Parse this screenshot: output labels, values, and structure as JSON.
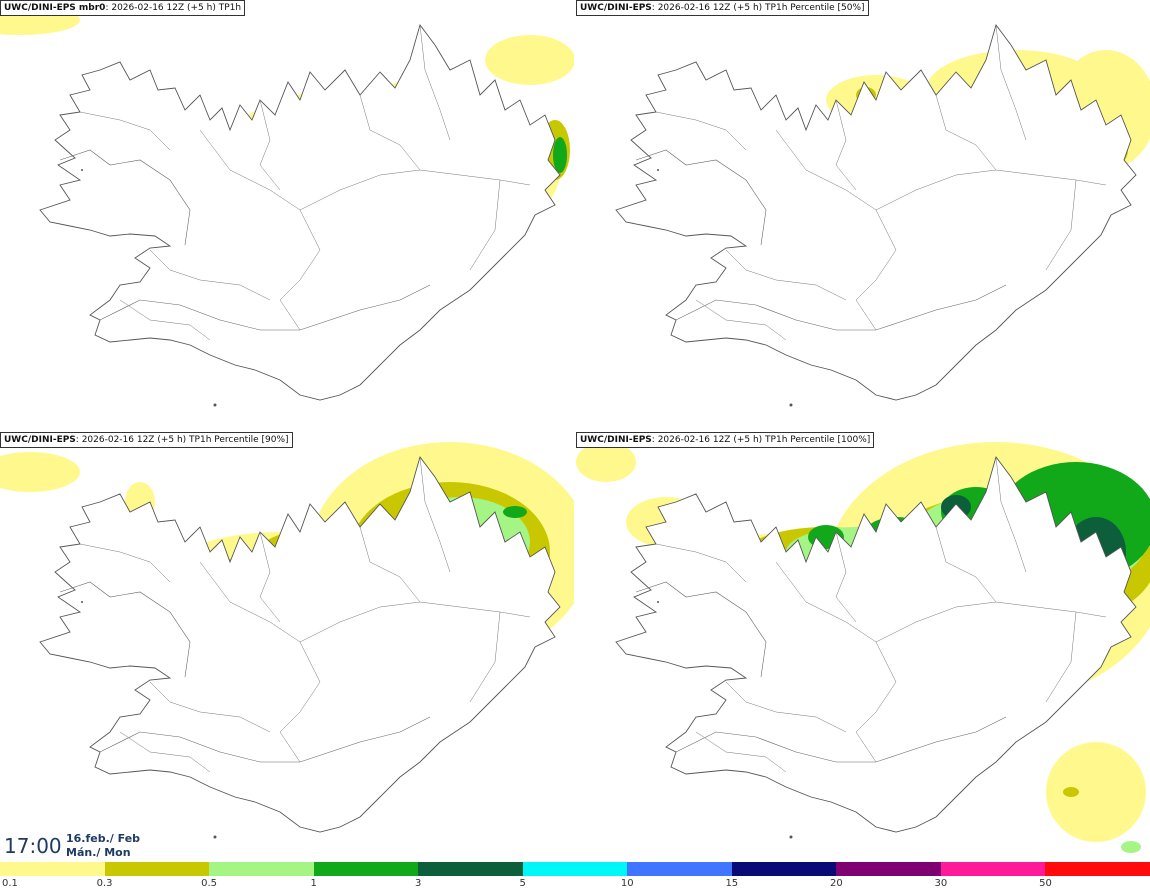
{
  "panels": [
    {
      "id": "mbr0",
      "title_bold": "UWC/DINI-EPS mbr0",
      "title_small": ": 2026-02-16 12Z (+5 h)",
      "title_var": " TP1h"
    },
    {
      "id": "p50",
      "title_bold": "UWC/DINI-EPS",
      "title_small": ": 2026-02-16 12Z (+5 h)",
      "title_var": " TP1h Percentile [50%]"
    },
    {
      "id": "p90",
      "title_bold": "UWC/DINI-EPS",
      "title_small": ": 2026-02-16 12Z (+5 h)",
      "title_var": " TP1h Percentile [90%]"
    },
    {
      "id": "p100",
      "title_bold": "UWC/DINI-EPS",
      "title_small": ": 2026-02-16 12Z (+5 h)",
      "title_var": " TP1h Percentile [100%]"
    }
  ],
  "valid_time": {
    "time": "17:00",
    "date_line1": "16.feb./ Feb",
    "date_line2": "Mán./ Mon"
  },
  "legend": {
    "colors": [
      "#fff98d",
      "#c9c800",
      "#a5f585",
      "#11a81a",
      "#0d5e3b",
      "#00f7f7",
      "#3f75ff",
      "#0a0a76",
      "#7f0070",
      "#ff1a9a",
      "#ff0b0b"
    ],
    "labels": [
      "0.1",
      "0.3",
      "0.5",
      "1",
      "3",
      "5",
      "10",
      "15",
      "20",
      "30",
      "50"
    ]
  }
}
